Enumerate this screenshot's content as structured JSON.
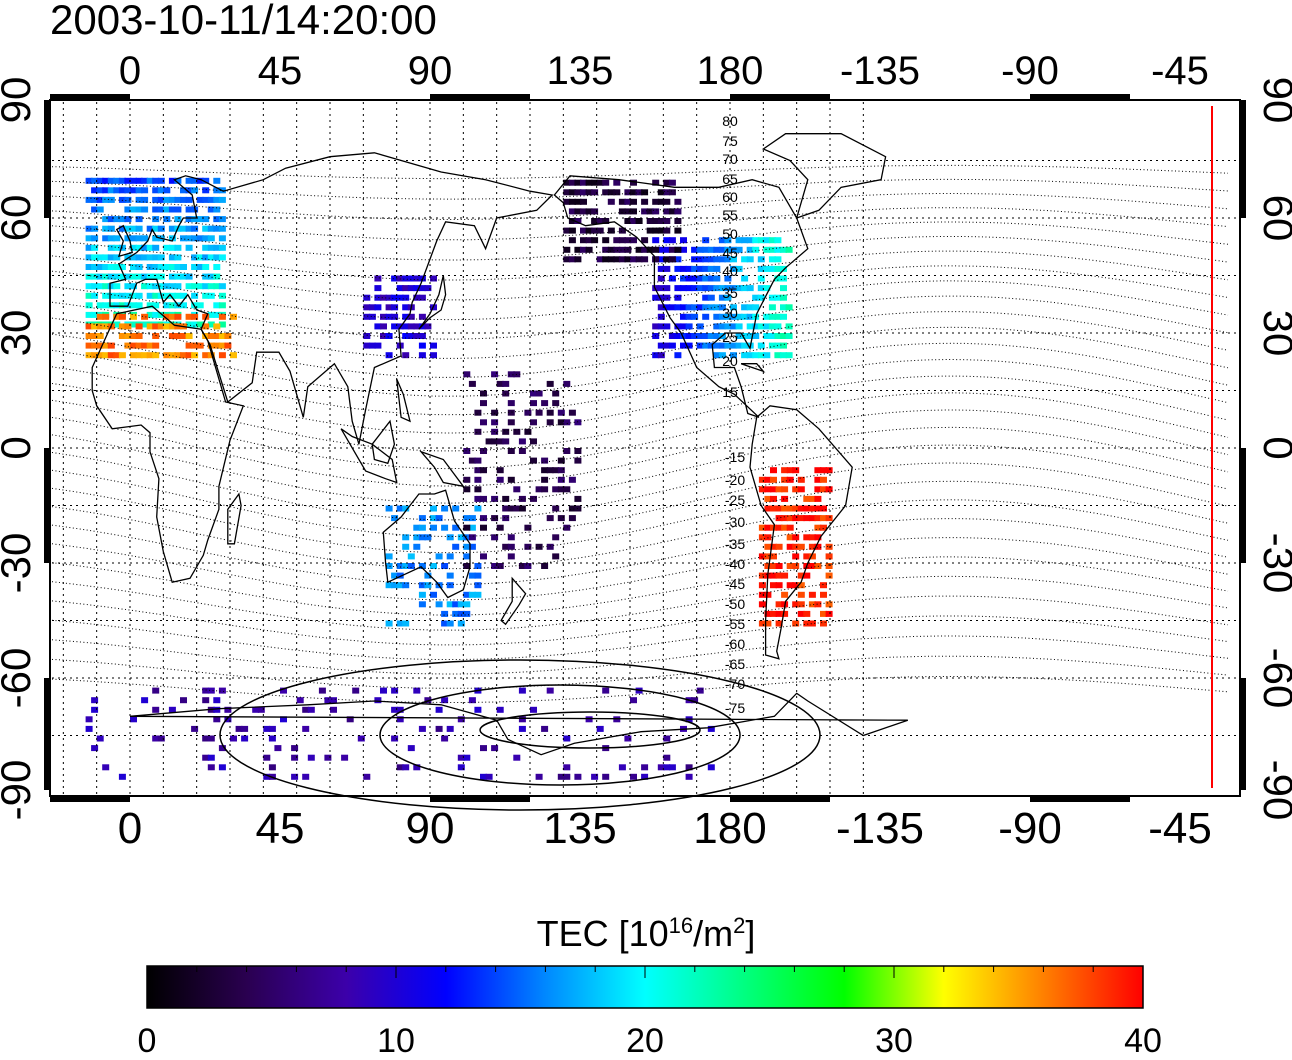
{
  "title": "2003-10-11/14:20:00",
  "map": {
    "lon_ticks": [
      "0",
      "45",
      "90",
      "135",
      "180",
      "-135",
      "-90",
      "-45"
    ],
    "lat_ticks_left": [
      "90",
      "60",
      "30",
      "0",
      "-30",
      "-60",
      "-90"
    ],
    "lat_ticks_right": [
      "90",
      "60",
      "30",
      "0",
      "-30",
      "-60",
      "-90"
    ],
    "contour_labels_north": [
      "80",
      "75",
      "70",
      "65",
      "60",
      "55",
      "50",
      "45",
      "40",
      "35",
      "30",
      "25",
      "20",
      "15"
    ],
    "contour_labels_south": [
      "-15",
      "-20",
      "-25",
      "-30",
      "-35",
      "-40",
      "-45",
      "-50",
      "-55",
      "-60",
      "-65",
      "-70",
      "-75"
    ],
    "terminator_color": "#ff0000"
  },
  "colorbar": {
    "title_prefix": "TEC  [10",
    "title_exp1": "16",
    "title_mid": "/m",
    "title_exp2": "2",
    "title_suffix": "]",
    "min": 0,
    "max": 40,
    "ticks": [
      "0",
      "10",
      "20",
      "30",
      "40"
    ],
    "palette": [
      "#000000",
      "#2a0050",
      "#3c00aa",
      "#0000ff",
      "#0088ff",
      "#00ffff",
      "#00ff80",
      "#00ff00",
      "#ffff00",
      "#ff8000",
      "#ff0000"
    ]
  },
  "tec_regions": [
    {
      "name": "europe",
      "value": 22
    },
    {
      "name": "mediterranean",
      "value": 36
    },
    {
      "name": "north-america",
      "value": 16
    },
    {
      "name": "alaska-canada",
      "value": 3
    },
    {
      "name": "south-america",
      "value": 39
    },
    {
      "name": "east-asia",
      "value": 10
    },
    {
      "name": "australia",
      "value": 16
    },
    {
      "name": "pacific",
      "value": 4
    },
    {
      "name": "antarctica",
      "value": 8
    }
  ]
}
